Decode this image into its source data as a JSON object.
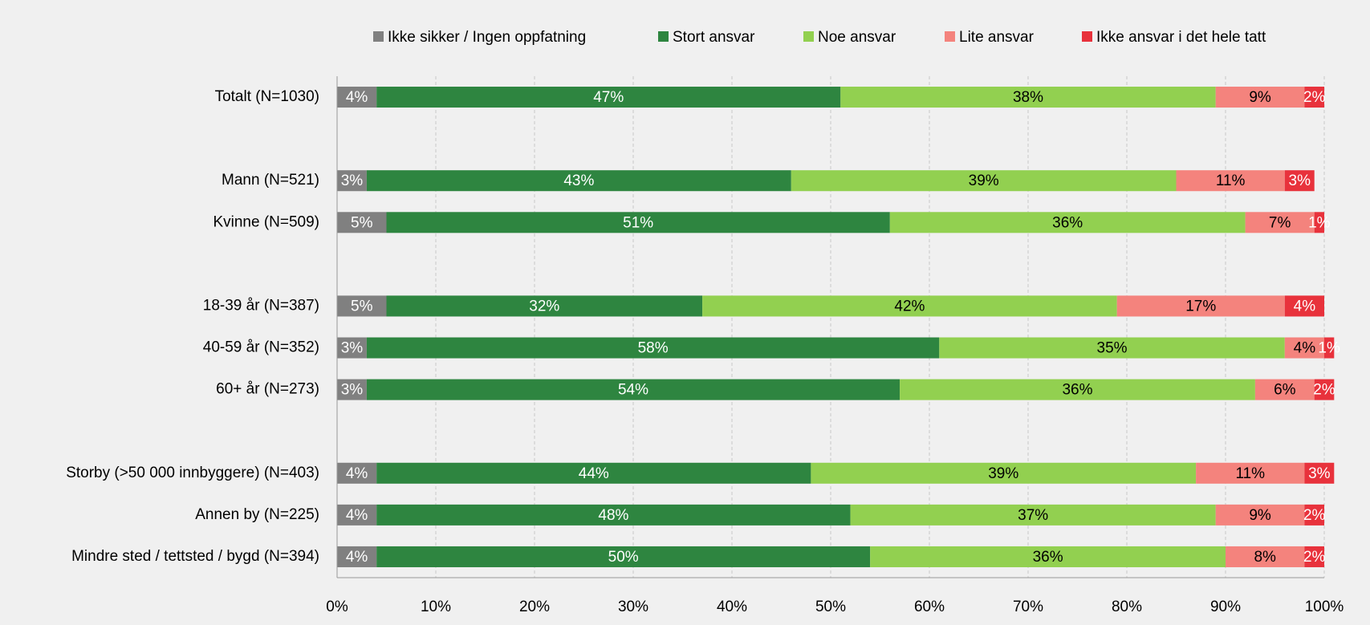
{
  "chart_data": {
    "type": "stacked-bar-horizontal",
    "categories": [
      "Totalt (N=1030)",
      null,
      "Mann (N=521)",
      "Kvinne (N=509)",
      null,
      "18-39 år (N=387)",
      "40-59 år (N=352)",
      "60+ år (N=273)",
      null,
      "Storby (>50 000 innbyggere) (N=403)",
      "Annen by (N=225)",
      "Mindre sted / tettsted / bygd (N=394)"
    ],
    "series": [
      {
        "name": "Ikke sikker / Ingen oppfatning",
        "color": "#808080",
        "values": [
          4,
          null,
          3,
          5,
          null,
          5,
          3,
          3,
          null,
          4,
          4,
          4
        ],
        "value_labels": [
          "4%",
          null,
          "3%",
          "5%",
          null,
          "5%",
          "3%",
          "3%",
          null,
          "4%",
          "4%",
          "4%"
        ]
      },
      {
        "name": "Stort ansvar",
        "color": "#2e8540",
        "values": [
          47,
          null,
          43,
          51,
          null,
          32,
          58,
          54,
          null,
          44,
          48,
          50
        ],
        "value_labels": [
          "47%",
          null,
          "43%",
          "51%",
          null,
          "32%",
          "58%",
          "54%",
          null,
          "44%",
          "48%",
          "50%"
        ]
      },
      {
        "name": "Noe ansvar",
        "color": "#92d050",
        "values": [
          38,
          null,
          39,
          36,
          null,
          42,
          35,
          36,
          null,
          39,
          37,
          36
        ],
        "value_labels": [
          "38%",
          null,
          "39%",
          "36%",
          null,
          "42%",
          "35%",
          "36%",
          null,
          "39%",
          "37%",
          "36%"
        ]
      },
      {
        "name": "Lite ansvar",
        "color": "#f4837d",
        "values": [
          9,
          null,
          11,
          7,
          null,
          17,
          4,
          6,
          null,
          11,
          9,
          8
        ],
        "value_labels": [
          "9%",
          null,
          "11%",
          "7%",
          null,
          "17%",
          "4%",
          "6%",
          null,
          "11%",
          "9%",
          "8%"
        ]
      },
      {
        "name": "Ikke ansvar i det hele tatt",
        "color": "#e8323c",
        "values": [
          2,
          null,
          3,
          1,
          null,
          4,
          1,
          2,
          null,
          3,
          2,
          2
        ],
        "value_labels": [
          "2%",
          null,
          "3%",
          "1%",
          null,
          "4%",
          "1%",
          "2%",
          null,
          "3%",
          "2%",
          "2%"
        ]
      }
    ],
    "xlim": [
      0,
      100
    ],
    "xticks": [
      {
        "value": 0,
        "label": "0%"
      },
      {
        "value": 10,
        "label": "10%"
      },
      {
        "value": 20,
        "label": "20%"
      },
      {
        "value": 30,
        "label": "30%"
      },
      {
        "value": 40,
        "label": "40%"
      },
      {
        "value": 50,
        "label": "50%"
      },
      {
        "value": 60,
        "label": "60%"
      },
      {
        "value": 70,
        "label": "70%"
      },
      {
        "value": 80,
        "label": "80%"
      },
      {
        "value": 90,
        "label": "90%"
      },
      {
        "value": 100,
        "label": "100%"
      }
    ],
    "grid": true,
    "legend": "top"
  }
}
